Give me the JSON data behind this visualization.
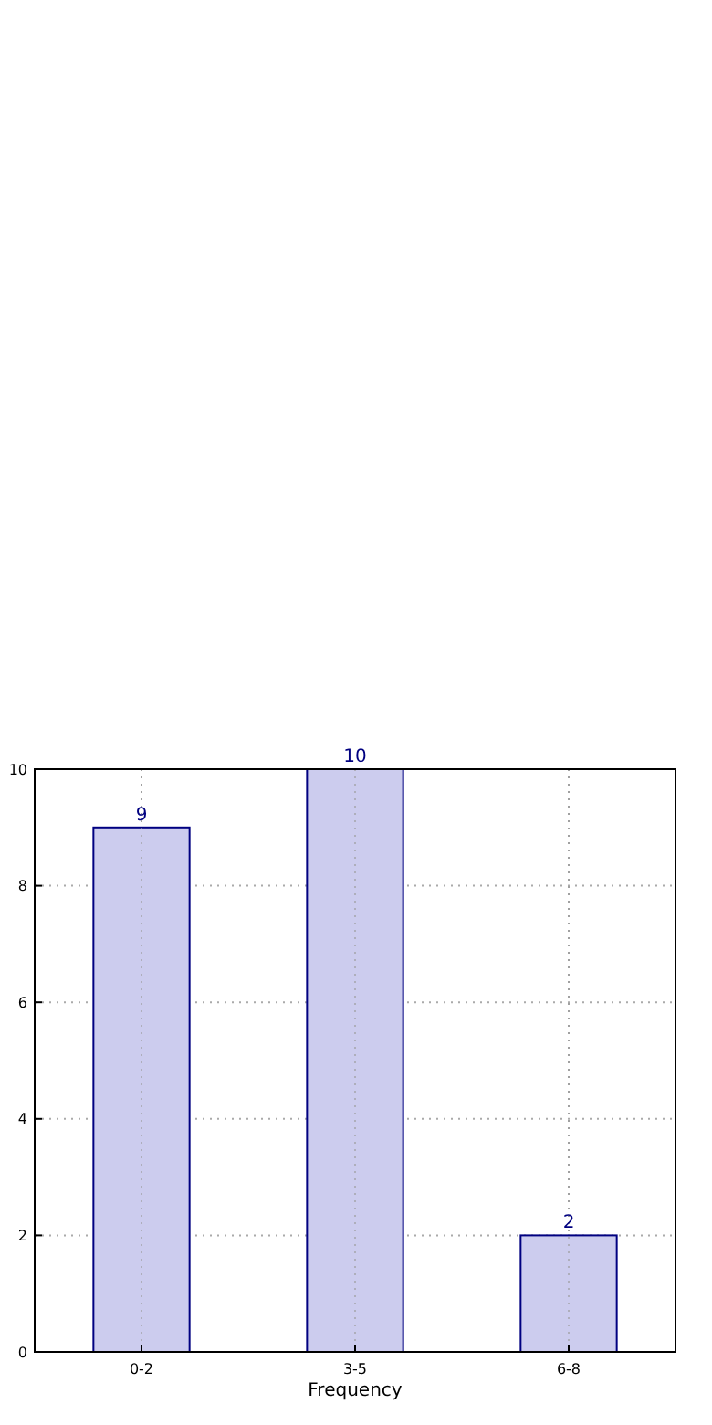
{
  "chart_data": {
    "type": "bar",
    "xlabel": "Frequency",
    "categories": [
      "0-2",
      "3-5",
      "6-8"
    ],
    "values": [
      9,
      10,
      2
    ],
    "color": "#ccccee",
    "data_labels": true,
    "ylim": [
      0,
      10
    ],
    "yticks": [
      0,
      2,
      4,
      6,
      8,
      10
    ],
    "grid": true
  }
}
